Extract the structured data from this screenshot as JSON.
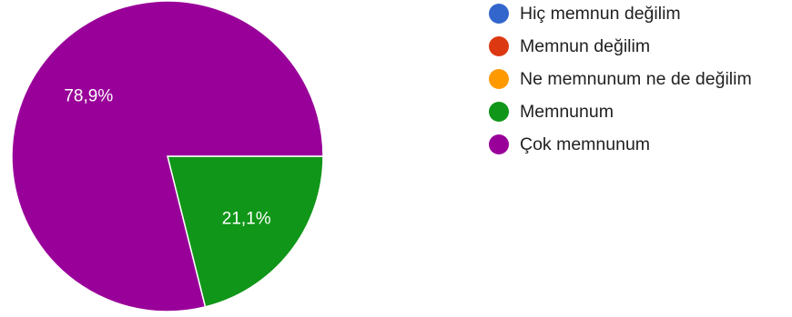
{
  "chart_data": {
    "type": "pie",
    "slices": [
      {
        "label": "Hiç memnun değilim",
        "value": 0,
        "display": "",
        "color": "#3366cc"
      },
      {
        "label": "Memnun değilim",
        "value": 0,
        "display": "",
        "color": "#dc3912"
      },
      {
        "label": "Ne memnunum ne de değilim",
        "value": 0,
        "display": "",
        "color": "#ff9900"
      },
      {
        "label": "Memnunum",
        "value": 21.1,
        "display": "21,1%",
        "color": "#109618"
      },
      {
        "label": "Çok memnunum",
        "value": 78.9,
        "display": "78,9%",
        "color": "#990099"
      }
    ],
    "legend_position": "right",
    "start_angle_deg": 90,
    "direction": "clockwise"
  }
}
